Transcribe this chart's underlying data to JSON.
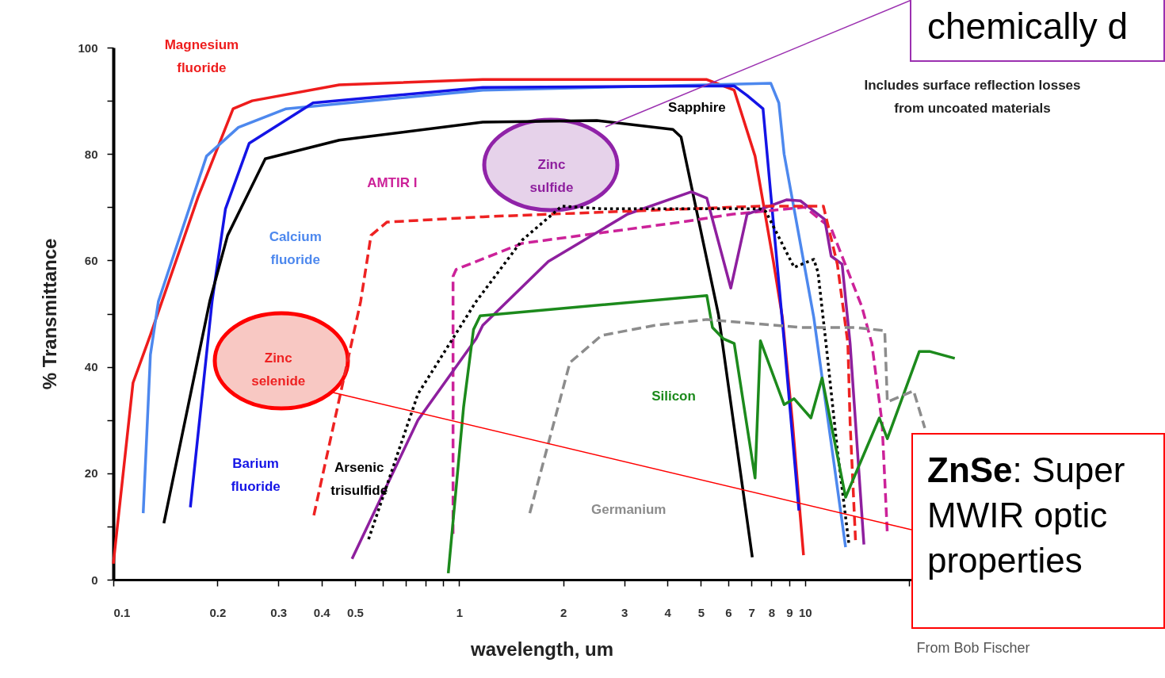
{
  "chart_data": {
    "type": "line",
    "xlabel": "wavelength, um",
    "ylabel": "% Transmittance",
    "log": "x",
    "xlim": [
      0.1,
      30
    ],
    "ylim": [
      0,
      100
    ],
    "xticks": [
      0.1,
      0.2,
      0.3,
      0.4,
      0.5,
      {
        "value": 0.6,
        "label": null
      },
      {
        "value": 0.7,
        "label": null
      },
      {
        "value": 0.8,
        "label": null
      },
      {
        "value": 0.9,
        "label": null
      },
      1,
      2,
      3,
      4,
      5,
      6,
      7,
      8,
      9,
      10,
      {
        "value": 20,
        "label": null
      }
    ],
    "yticks": [
      0,
      {
        "value": 10,
        "label": null
      },
      20,
      {
        "value": 30,
        "label": null
      },
      40,
      {
        "value": 50,
        "label": null
      },
      60,
      {
        "value": 70,
        "label": null
      },
      80,
      {
        "value": 90,
        "label": null
      },
      100
    ],
    "line_style": "solid",
    "series": [
      {
        "name": "Magnesium fluoride",
        "color": "#ee1c1c",
        "x": [
          0.1,
          0.114,
          0.128,
          0.176,
          0.222,
          0.252,
          0.45,
          1.17,
          3,
          5.2,
          6.24,
          7.17,
          8.1,
          8.6,
          9.2,
          9.9
        ],
        "values": [
          3,
          37,
          46,
          72,
          88.5,
          90,
          93,
          94,
          94,
          94,
          92,
          79.6,
          59.8,
          49.3,
          29.5,
          4.6
        ]
      },
      {
        "name": "Calcium fluoride",
        "color": "#4d88ee",
        "x": [
          0.122,
          0.128,
          0.135,
          0.186,
          0.23,
          0.316,
          1.17,
          5.2,
          7.96,
          8.4,
          8.7,
          10.6,
          13.1
        ],
        "values": [
          12.5,
          42.3,
          52.3,
          79.6,
          85,
          88.5,
          92,
          93,
          93.3,
          89.6,
          80,
          49.3,
          6.1
        ]
      },
      {
        "name": "Barium fluoride",
        "color": "#1414e6",
        "x": [
          0.167,
          0.193,
          0.211,
          0.247,
          0.378,
          1.17,
          6.24,
          6.8,
          7.56,
          8.7,
          9.6
        ],
        "values": [
          13.6,
          52.3,
          69.7,
          82,
          89.6,
          92.5,
          92.8,
          91,
          88.5,
          44.9,
          13
        ]
      },
      {
        "name": "Sapphire",
        "color": "#000000",
        "x": [
          0.14,
          0.19,
          0.214,
          0.275,
          0.45,
          1.17,
          2.5,
          4.15,
          4.38,
          5.62,
          7.04
        ],
        "values": [
          10.6,
          52.3,
          64.7,
          79.1,
          82.6,
          86,
          86.3,
          84.6,
          83.2,
          49.8,
          4.2
        ]
      },
      {
        "name": "AMTIR I",
        "color": "#cc2299",
        "line_style": "dashed",
        "x": [
          0.96,
          0.96,
          0.98,
          1.52,
          4.38,
          6.2,
          10,
          11.9,
          14.6,
          15.6,
          16.7,
          17.3
        ],
        "values": [
          8.6,
          57,
          58.3,
          63.2,
          67.2,
          68.7,
          70,
          66,
          51.3,
          44.4,
          29.5,
          8.6
        ]
      },
      {
        "name": "Zinc sulfide",
        "color": "#8e1f9e",
        "x": [
          0.49,
          0.76,
          1.12,
          1.17,
          1.81,
          3.07,
          4.69,
          5.2,
          6.1,
          6.8,
          8.86,
          9.7,
          11.4,
          11.9,
          12.8,
          13.5,
          14.8
        ],
        "values": [
          3.9,
          30,
          45.3,
          47.8,
          59.8,
          68.7,
          72.9,
          71.7,
          54.8,
          68.7,
          71.4,
          71.2,
          67.7,
          60.8,
          59.3,
          44.4,
          6.6
        ]
      },
      {
        "name": "Zinc selenide",
        "color": "#ee2222",
        "line_style": "dashed",
        "x": [
          0.38,
          0.519,
          0.556,
          0.618,
          1.17,
          7.4,
          11.3,
          12.4,
          13.3,
          13.5,
          14.0
        ],
        "values": [
          12.1,
          52.3,
          64.7,
          67.2,
          68.2,
          70.2,
          70.2,
          59.3,
          44.4,
          29.5,
          7.2
        ]
      },
      {
        "name": "Arsenic trisulfide",
        "color": "#000000",
        "line_style": "dotted",
        "x": [
          0.547,
          0.76,
          1.12,
          1.52,
          1.98,
          2.58,
          7.4,
          7.7,
          9.3,
          10.6,
          10.9,
          11.5,
          12.4,
          13.4
        ],
        "values": [
          7.6,
          34.9,
          52.3,
          63.8,
          70.2,
          69.7,
          69.7,
          69.2,
          58.7,
          60.2,
          57.8,
          44.4,
          24.4,
          6.6
        ]
      },
      {
        "name": "Silicon",
        "color": "#1c8a1c",
        "x": [
          0.93,
          1.03,
          1.1,
          1.15,
          5.2,
          5.4,
          5.8,
          6.24,
          7.17,
          7.43,
          8.7,
          9.3,
          10.4,
          11.2,
          13.1,
          16.4,
          17.3,
          21.4,
          22.9,
          27.1
        ],
        "values": [
          1.2,
          32.5,
          47,
          49.6,
          53.4,
          47.4,
          45.3,
          44.4,
          19.1,
          44.9,
          32.9,
          34,
          30.4,
          37.9,
          15.5,
          30.4,
          26.5,
          42.9,
          42.9,
          41.6
        ]
      },
      {
        "name": "Germanium",
        "color": "#8c8c8c",
        "line_style": "dashed",
        "x": [
          1.6,
          2.09,
          2.58,
          3.68,
          5.2,
          9.7,
          14,
          17,
          17.3,
          20.6,
          22.2
        ],
        "values": [
          12.5,
          40.8,
          45.9,
          47.8,
          48.9,
          47.4,
          47.4,
          46.8,
          33.4,
          35.5,
          28.5
        ]
      }
    ],
    "annotations": [
      "Includes surface reflection losses from uncoated materials",
      "From Bob Fischer",
      "chemically d",
      "ZnSe: Super MWIR optic properties"
    ]
  }
}
